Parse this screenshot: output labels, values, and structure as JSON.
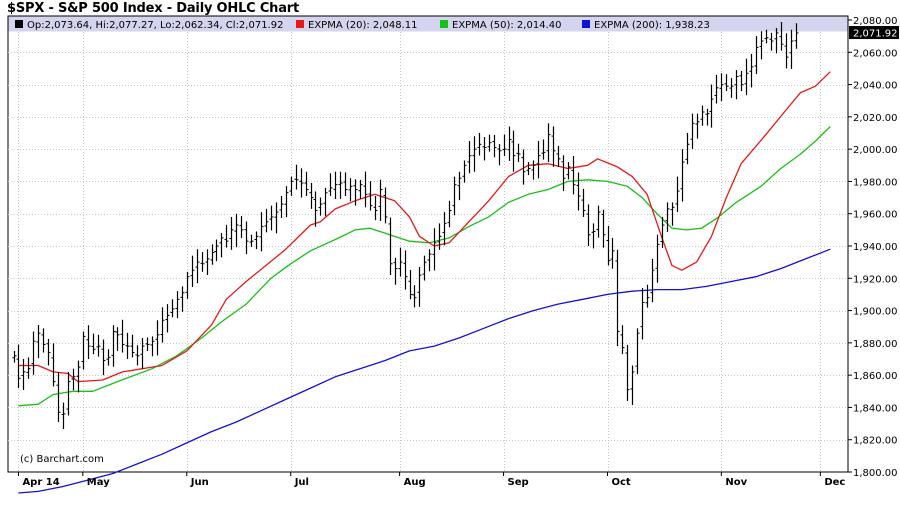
{
  "chart_data": {
    "type": "ohlc",
    "title": "$SPX - S&P 500 Index - Daily OHLC Chart",
    "watermark": "(c) Barchart.com",
    "ylim": [
      1800,
      2080
    ],
    "y_ticks": [
      "2,080.00",
      "2,060.00",
      "2,040.00",
      "2,020.00",
      "2,000.00",
      "1,980.00",
      "1,960.00",
      "1,940.00",
      "1,920.00",
      "1,900.00",
      "1,880.00",
      "1,860.00",
      "1,840.00",
      "1,820.00",
      "1,800.00"
    ],
    "y_tick_values": [
      2080,
      2060,
      2040,
      2020,
      2000,
      1980,
      1960,
      1940,
      1920,
      1900,
      1880,
      1860,
      1840,
      1820,
      1800
    ],
    "x_labels": [
      {
        "label": "Apr 14",
        "bar": 1
      },
      {
        "label": "May",
        "bar": 14
      },
      {
        "label": "Jun",
        "bar": 35
      },
      {
        "label": "Jul",
        "bar": 56
      },
      {
        "label": "Aug",
        "bar": 78
      },
      {
        "label": "Sep",
        "bar": 99
      },
      {
        "label": "Oct",
        "bar": 120
      },
      {
        "label": "Nov",
        "bar": 143
      },
      {
        "label": "Dec",
        "bar": 163
      }
    ],
    "legend": {
      "ohlc": "Op:2,073.64, Hi:2,077.27, Lo:2,062.34, Cl:2,071.92",
      "ema20": "EXPMA (20): 2,048.11",
      "ema50": "EXPMA (50): 2,014.40",
      "ema200": "EXPMA (200): 1,938.23"
    },
    "last_price_label": "2,071.92",
    "last_price": 2071.92,
    "colors": {
      "ema20": "#e41a1a",
      "ema50": "#19c019",
      "ema200": "#1212d6",
      "ohlc": "#000000",
      "grid": "#c8c8c8",
      "legend_bg": "#d4d4ee",
      "last_price_bg": "#000000"
    },
    "series_close": [
      1872,
      1858,
      1862,
      1864,
      1881,
      1886,
      1879,
      1874,
      1856,
      1837,
      1836,
      1856,
      1859,
      1865,
      1884,
      1878,
      1876,
      1878,
      1869,
      1871,
      1887,
      1885,
      1879,
      1878,
      1874,
      1872,
      1878,
      1879,
      1881,
      1885,
      1894,
      1897,
      1901,
      1907,
      1911,
      1921,
      1925,
      1930,
      1929,
      1932,
      1936,
      1940,
      1945,
      1943,
      1950,
      1953,
      1950,
      1943,
      1943,
      1946,
      1952,
      1955,
      1958,
      1961,
      1966,
      1973,
      1980,
      1981,
      1979,
      1975,
      1970,
      1962,
      1966,
      1973,
      1976,
      1978,
      1979,
      1975,
      1977,
      1975,
      1978,
      1972,
      1965,
      1962,
      1975,
      1958,
      1929,
      1926,
      1930,
      1921,
      1910,
      1908,
      1922,
      1930,
      1935,
      1942,
      1946,
      1954,
      1962,
      1978,
      1982,
      1990,
      1996,
      2000,
      2003,
      2001,
      2004,
      2001,
      1999,
      2000,
      2006,
      1996,
      1997,
      1986,
      1988,
      1990,
      1996,
      1998,
      2009,
      1999,
      1994,
      1982,
      1989,
      1978,
      1971,
      1962,
      1947,
      1949,
      1961,
      1947,
      1931,
      1937,
      1887,
      1877,
      1851,
      1862,
      1886,
      1905,
      1908,
      1925,
      1941,
      1953,
      1963,
      1964,
      1974,
      1992,
      2003,
      2016,
      2017,
      2023,
      2022,
      2031,
      2038,
      2040,
      2039,
      2039,
      2045,
      2040,
      2047,
      2051,
      2063,
      2067,
      2069,
      2067,
      2072,
      2065,
      2057,
      2067,
      2072
    ],
    "ema20": [
      [
        1,
        1866
      ],
      [
        5,
        1866
      ],
      [
        8,
        1862
      ],
      [
        11,
        1861
      ],
      [
        13,
        1856
      ],
      [
        18,
        1857
      ],
      [
        22,
        1862
      ],
      [
        30,
        1866
      ],
      [
        35,
        1875
      ],
      [
        40,
        1891
      ],
      [
        43,
        1907
      ],
      [
        47,
        1918
      ],
      [
        51,
        1928
      ],
      [
        55,
        1938
      ],
      [
        60,
        1953
      ],
      [
        62,
        1955
      ],
      [
        65,
        1963
      ],
      [
        69,
        1968
      ],
      [
        73,
        1972
      ],
      [
        77,
        1968
      ],
      [
        80,
        1958
      ],
      [
        82,
        1946
      ],
      [
        85,
        1940
      ],
      [
        88,
        1942
      ],
      [
        92,
        1955
      ],
      [
        96,
        1968
      ],
      [
        100,
        1983
      ],
      [
        104,
        1990
      ],
      [
        108,
        1991
      ],
      [
        112,
        1988
      ],
      [
        116,
        1990
      ],
      [
        118,
        1994
      ],
      [
        122,
        1989
      ],
      [
        125,
        1983
      ],
      [
        128,
        1972
      ],
      [
        131,
        1945
      ],
      [
        133,
        1928
      ],
      [
        135,
        1925
      ],
      [
        138,
        1930
      ],
      [
        141,
        1946
      ],
      [
        144,
        1970
      ],
      [
        147,
        1991
      ],
      [
        152,
        2009
      ],
      [
        156,
        2024
      ],
      [
        159,
        2035
      ],
      [
        162,
        2039
      ],
      [
        165,
        2048
      ]
    ],
    "ema50": [
      [
        1,
        1841
      ],
      [
        5,
        1842
      ],
      [
        8,
        1848
      ],
      [
        12,
        1850
      ],
      [
        16,
        1850
      ],
      [
        21,
        1856
      ],
      [
        28,
        1864
      ],
      [
        33,
        1872
      ],
      [
        38,
        1883
      ],
      [
        42,
        1893
      ],
      [
        47,
        1904
      ],
      [
        52,
        1920
      ],
      [
        56,
        1929
      ],
      [
        60,
        1937
      ],
      [
        65,
        1944
      ],
      [
        69,
        1950
      ],
      [
        72,
        1951
      ],
      [
        76,
        1947
      ],
      [
        80,
        1943
      ],
      [
        84,
        1942
      ],
      [
        88,
        1945
      ],
      [
        92,
        1952
      ],
      [
        96,
        1958
      ],
      [
        100,
        1967
      ],
      [
        104,
        1972
      ],
      [
        108,
        1975
      ],
      [
        112,
        1980
      ],
      [
        116,
        1981
      ],
      [
        120,
        1980
      ],
      [
        124,
        1977
      ],
      [
        127,
        1970
      ],
      [
        130,
        1960
      ],
      [
        133,
        1951
      ],
      [
        136,
        1950
      ],
      [
        139,
        1951
      ],
      [
        142,
        1957
      ],
      [
        146,
        1967
      ],
      [
        151,
        1977
      ],
      [
        155,
        1988
      ],
      [
        159,
        1997
      ],
      [
        162,
        2005
      ],
      [
        165,
        2014
      ]
    ],
    "ema200": [
      [
        1,
        1787
      ],
      [
        5,
        1788
      ],
      [
        10,
        1791
      ],
      [
        15,
        1795
      ],
      [
        20,
        1799
      ],
      [
        25,
        1805
      ],
      [
        30,
        1811
      ],
      [
        35,
        1818
      ],
      [
        40,
        1825
      ],
      [
        45,
        1831
      ],
      [
        50,
        1838
      ],
      [
        55,
        1845
      ],
      [
        60,
        1852
      ],
      [
        65,
        1859
      ],
      [
        70,
        1864
      ],
      [
        75,
        1869
      ],
      [
        80,
        1875
      ],
      [
        85,
        1878
      ],
      [
        90,
        1883
      ],
      [
        95,
        1889
      ],
      [
        100,
        1895
      ],
      [
        105,
        1900
      ],
      [
        110,
        1904
      ],
      [
        115,
        1907
      ],
      [
        120,
        1910
      ],
      [
        125,
        1912
      ],
      [
        130,
        1913
      ],
      [
        135,
        1913
      ],
      [
        140,
        1915
      ],
      [
        145,
        1918
      ],
      [
        150,
        1921
      ],
      [
        155,
        1926
      ],
      [
        160,
        1932
      ],
      [
        165,
        1938
      ]
    ]
  }
}
